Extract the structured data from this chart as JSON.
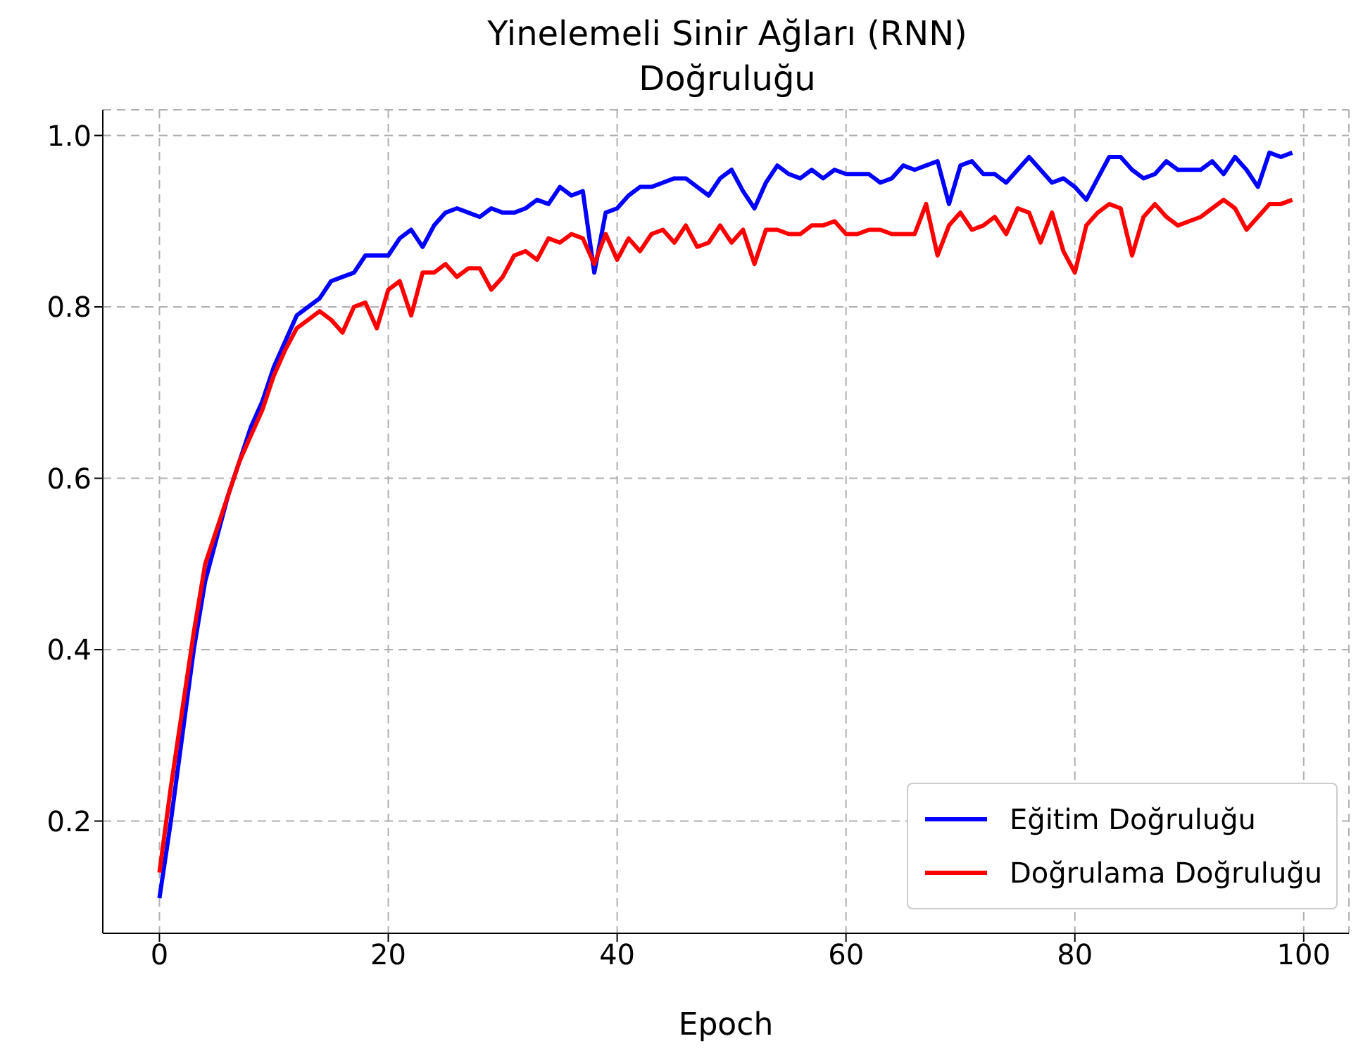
{
  "chart_data": {
    "type": "line",
    "title": "Yinelemeli Sinir Ağları (RNN)\nDoğruluğu",
    "xlabel": "Epoch",
    "x": [
      0,
      1,
      2,
      3,
      4,
      5,
      6,
      7,
      8,
      9,
      10,
      11,
      12,
      13,
      14,
      15,
      16,
      17,
      18,
      19,
      20,
      21,
      22,
      23,
      24,
      25,
      26,
      27,
      28,
      29,
      30,
      31,
      32,
      33,
      34,
      35,
      36,
      37,
      38,
      39,
      40,
      41,
      42,
      43,
      44,
      45,
      46,
      47,
      48,
      49,
      50,
      51,
      52,
      53,
      54,
      55,
      56,
      57,
      58,
      59,
      60,
      61,
      62,
      63,
      64,
      65,
      66,
      67,
      68,
      69,
      70,
      71,
      72,
      73,
      74,
      75,
      76,
      77,
      78,
      79,
      80,
      81,
      82,
      83,
      84,
      85,
      86,
      87,
      88,
      89,
      90,
      91,
      92,
      93,
      94,
      95,
      96,
      97,
      98,
      99
    ],
    "series": [
      {
        "name": "Eğitim Doğruluğu",
        "color": "#0000ff",
        "values": [
          0.11,
          0.2,
          0.3,
          0.4,
          0.48,
          0.53,
          0.58,
          0.62,
          0.66,
          0.69,
          0.73,
          0.76,
          0.79,
          0.8,
          0.81,
          0.83,
          0.835,
          0.84,
          0.86,
          0.86,
          0.86,
          0.88,
          0.89,
          0.87,
          0.895,
          0.91,
          0.915,
          0.91,
          0.905,
          0.915,
          0.91,
          0.91,
          0.915,
          0.925,
          0.92,
          0.94,
          0.93,
          0.935,
          0.84,
          0.91,
          0.915,
          0.93,
          0.94,
          0.94,
          0.945,
          0.95,
          0.95,
          0.94,
          0.93,
          0.95,
          0.96,
          0.935,
          0.915,
          0.945,
          0.965,
          0.955,
          0.95,
          0.96,
          0.95,
          0.96,
          0.955,
          0.955,
          0.955,
          0.945,
          0.95,
          0.965,
          0.96,
          0.965,
          0.97,
          0.92,
          0.965,
          0.97,
          0.955,
          0.955,
          0.945,
          0.96,
          0.975,
          0.96,
          0.945,
          0.95,
          0.94,
          0.925,
          0.95,
          0.975,
          0.975,
          0.96,
          0.95,
          0.955,
          0.97,
          0.96,
          0.96,
          0.96,
          0.97,
          0.955,
          0.975,
          0.96,
          0.94,
          0.98,
          0.975,
          0.98
        ]
      },
      {
        "name": "Doğrulama Doğruluğu",
        "color": "#ff0000",
        "values": [
          0.14,
          0.24,
          0.33,
          0.42,
          0.5,
          0.54,
          0.58,
          0.62,
          0.65,
          0.68,
          0.72,
          0.75,
          0.775,
          0.785,
          0.795,
          0.785,
          0.77,
          0.8,
          0.805,
          0.775,
          0.82,
          0.83,
          0.79,
          0.84,
          0.84,
          0.85,
          0.835,
          0.845,
          0.845,
          0.82,
          0.835,
          0.86,
          0.865,
          0.855,
          0.88,
          0.875,
          0.885,
          0.88,
          0.85,
          0.885,
          0.855,
          0.88,
          0.865,
          0.885,
          0.89,
          0.875,
          0.895,
          0.87,
          0.875,
          0.895,
          0.875,
          0.89,
          0.85,
          0.89,
          0.89,
          0.885,
          0.885,
          0.895,
          0.895,
          0.9,
          0.885,
          0.885,
          0.89,
          0.89,
          0.885,
          0.885,
          0.885,
          0.92,
          0.86,
          0.895,
          0.91,
          0.89,
          0.895,
          0.905,
          0.885,
          0.915,
          0.91,
          0.875,
          0.91,
          0.865,
          0.84,
          0.895,
          0.91,
          0.92,
          0.915,
          0.86,
          0.905,
          0.92,
          0.905,
          0.895,
          0.9,
          0.905,
          0.915,
          0.925,
          0.915,
          0.89,
          0.905,
          0.92,
          0.92,
          0.925
        ]
      }
    ],
    "xlim": [
      -4.95,
      103.95
    ],
    "ylim": [
      0.069,
      1.03
    ],
    "xticks": [
      0,
      20,
      40,
      60,
      80,
      100
    ],
    "yticks": [
      0.2,
      0.4,
      0.6,
      0.8,
      {
        "value": 1,
        "label": "1.0"
      }
    ],
    "grid": true,
    "legend": "bottom right",
    "line_style": "solid"
  }
}
